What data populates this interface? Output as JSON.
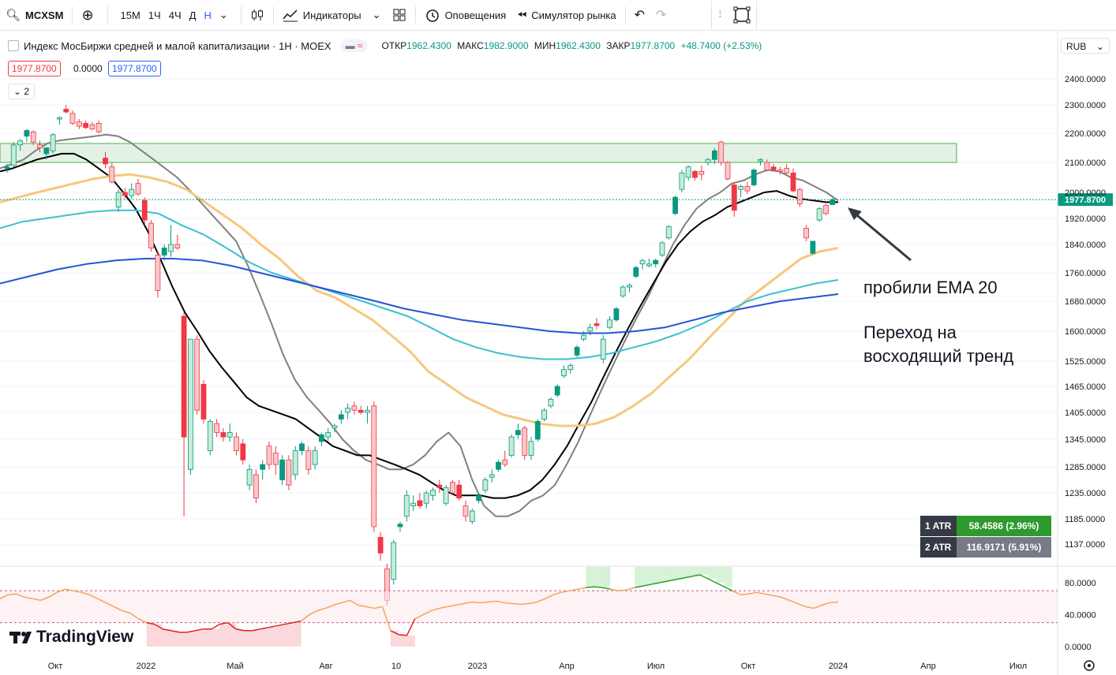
{
  "toolbar": {
    "symbol": "MCXSM",
    "timeframes": [
      "15М",
      "1Ч",
      "4Ч",
      "Д",
      "Н"
    ],
    "active_timeframe": "Н",
    "indicators_label": "Индикаторы",
    "alerts_label": "Оповещения",
    "replay_label": "Симулятор рынка"
  },
  "legend": {
    "title": "Индекс МосБиржи средней и малой капитализации · 1Н · MOEX",
    "open_label": "ОТКР",
    "open": "1962.4300",
    "high_label": "МАКС",
    "high": "1982.9000",
    "low_label": "МИН",
    "low": "1962.4300",
    "close_label": "ЗАКР",
    "close": "1977.8700",
    "change": "+48.7400 (+2.53%)",
    "sell_price": "1977.8700",
    "spread": "0.0000",
    "buy_price": "1977.8700",
    "indicator_count": "2"
  },
  "currency": "RUB",
  "atr": {
    "row1_label": "1 ATR",
    "row1_value": "58.4586 (2.96%)",
    "row2_label": "2 ATR",
    "row2_value": "116.9171 (5.91%)"
  },
  "annotations": {
    "line1": "пробили EMA 20",
    "line2": "Переход на",
    "line3": "восходящий тренд"
  },
  "brand": "TradingView",
  "colors": {
    "up": "#089981",
    "down": "#f23645",
    "ema_fast": "#808080",
    "ema20": "#000000",
    "ema_orange": "#f7c77d",
    "ema_teal": "#3bc0d0",
    "ema_blue": "#2453d8",
    "zone": "#c8e6c9",
    "rsi": "#f4a460"
  },
  "chart_data": {
    "type": "candlestick",
    "y_axis_ticks": [
      "2400.0000",
      "2300.0000",
      "2200.0000",
      "2100.0000",
      "2000.0000",
      "1920.0000",
      "1840.0000",
      "1760.0000",
      "1680.0000",
      "1600.0000",
      "1525.0000",
      "1465.0000",
      "1405.0000",
      "1345.0000",
      "1285.0000",
      "1235.0000",
      "1185.0000",
      "1137.0000"
    ],
    "x_axis_labels": [
      "Окт",
      "2022",
      "Май",
      "Авг",
      "10",
      "2023",
      "Апр",
      "Июл",
      "Окт",
      "2024",
      "Апр",
      "Июл"
    ],
    "last_price_label": "1977.8700",
    "resistance_zone": [
      2100,
      2165
    ],
    "candles": [
      {
        "o": 2080,
        "h": 2095,
        "l": 2065,
        "c": 2085
      },
      {
        "o": 2090,
        "h": 2170,
        "l": 2085,
        "c": 2160
      },
      {
        "o": 2160,
        "h": 2180,
        "l": 2140,
        "c": 2175
      },
      {
        "o": 2190,
        "h": 2215,
        "l": 2170,
        "c": 2210
      },
      {
        "o": 2205,
        "h": 2210,
        "l": 2160,
        "c": 2170
      },
      {
        "o": 2160,
        "h": 2175,
        "l": 2135,
        "c": 2150
      },
      {
        "o": 2130,
        "h": 2150,
        "l": 2110,
        "c": 2150
      },
      {
        "o": 2140,
        "h": 2200,
        "l": 2130,
        "c": 2195
      },
      {
        "o": 2250,
        "h": 2260,
        "l": 2230,
        "c": 2255
      },
      {
        "o": 2285,
        "h": 2300,
        "l": 2270,
        "c": 2275
      },
      {
        "o": 2270,
        "h": 2280,
        "l": 2230,
        "c": 2235
      },
      {
        "o": 2240,
        "h": 2250,
        "l": 2215,
        "c": 2225
      },
      {
        "o": 2235,
        "h": 2245,
        "l": 2215,
        "c": 2220
      },
      {
        "o": 2230,
        "h": 2240,
        "l": 2210,
        "c": 2215
      },
      {
        "o": 2235,
        "h": 2245,
        "l": 2200,
        "c": 2205
      },
      {
        "o": 2115,
        "h": 2135,
        "l": 2080,
        "c": 2095
      },
      {
        "o": 2085,
        "h": 2100,
        "l": 2030,
        "c": 2035
      },
      {
        "o": 1955,
        "h": 2010,
        "l": 1940,
        "c": 2000
      },
      {
        "o": 2000,
        "h": 2015,
        "l": 1980,
        "c": 1990
      },
      {
        "o": 1990,
        "h": 2030,
        "l": 1980,
        "c": 2010
      },
      {
        "o": 2030,
        "h": 2045,
        "l": 1990,
        "c": 1995
      },
      {
        "o": 1975,
        "h": 1985,
        "l": 1900,
        "c": 1915
      },
      {
        "o": 1905,
        "h": 1915,
        "l": 1820,
        "c": 1830
      },
      {
        "o": 1810,
        "h": 1820,
        "l": 1690,
        "c": 1710
      },
      {
        "o": 1810,
        "h": 1840,
        "l": 1795,
        "c": 1830
      },
      {
        "o": 1820,
        "h": 1900,
        "l": 1805,
        "c": 1840
      },
      {
        "o": 1840,
        "h": 1870,
        "l": 1825,
        "c": 1830
      },
      {
        "o": 1640,
        "h": 1650,
        "l": 1190,
        "c": 1350
      },
      {
        "o": 1280,
        "h": 1580,
        "l": 1270,
        "c": 1580
      },
      {
        "o": 1580,
        "h": 1590,
        "l": 1400,
        "c": 1410
      },
      {
        "o": 1470,
        "h": 1480,
        "l": 1380,
        "c": 1390
      },
      {
        "o": 1320,
        "h": 1390,
        "l": 1310,
        "c": 1385
      },
      {
        "o": 1380,
        "h": 1390,
        "l": 1350,
        "c": 1360
      },
      {
        "o": 1360,
        "h": 1370,
        "l": 1340,
        "c": 1350
      },
      {
        "o": 1350,
        "h": 1380,
        "l": 1340,
        "c": 1360
      },
      {
        "o": 1350,
        "h": 1360,
        "l": 1310,
        "c": 1320
      },
      {
        "o": 1335,
        "h": 1345,
        "l": 1290,
        "c": 1300
      },
      {
        "o": 1250,
        "h": 1290,
        "l": 1240,
        "c": 1280
      },
      {
        "o": 1270,
        "h": 1280,
        "l": 1215,
        "c": 1225
      },
      {
        "o": 1280,
        "h": 1300,
        "l": 1260,
        "c": 1290
      },
      {
        "o": 1330,
        "h": 1340,
        "l": 1280,
        "c": 1290
      },
      {
        "o": 1315,
        "h": 1330,
        "l": 1270,
        "c": 1290
      },
      {
        "o": 1260,
        "h": 1310,
        "l": 1250,
        "c": 1300
      },
      {
        "o": 1300,
        "h": 1310,
        "l": 1240,
        "c": 1250
      },
      {
        "o": 1270,
        "h": 1330,
        "l": 1260,
        "c": 1320
      },
      {
        "o": 1320,
        "h": 1340,
        "l": 1310,
        "c": 1335
      },
      {
        "o": 1320,
        "h": 1330,
        "l": 1270,
        "c": 1280
      },
      {
        "o": 1290,
        "h": 1330,
        "l": 1280,
        "c": 1320
      },
      {
        "o": 1340,
        "h": 1360,
        "l": 1330,
        "c": 1355
      },
      {
        "o": 1350,
        "h": 1370,
        "l": 1340,
        "c": 1360
      },
      {
        "o": 1370,
        "h": 1380,
        "l": 1360,
        "c": 1375
      },
      {
        "o": 1390,
        "h": 1410,
        "l": 1380,
        "c": 1400
      },
      {
        "o": 1405,
        "h": 1425,
        "l": 1390,
        "c": 1415
      },
      {
        "o": 1420,
        "h": 1430,
        "l": 1400,
        "c": 1410
      },
      {
        "o": 1410,
        "h": 1420,
        "l": 1400,
        "c": 1405
      },
      {
        "o": 1405,
        "h": 1420,
        "l": 1380,
        "c": 1410
      },
      {
        "o": 1420,
        "h": 1430,
        "l": 1160,
        "c": 1170
      },
      {
        "o": 1150,
        "h": 1160,
        "l": 1105,
        "c": 1120
      },
      {
        "o": 1090,
        "h": 1100,
        "l": 1020,
        "c": 1030
      },
      {
        "o": 1070,
        "h": 1145,
        "l": 1060,
        "c": 1140
      },
      {
        "o": 1170,
        "h": 1180,
        "l": 1160,
        "c": 1175
      },
      {
        "o": 1190,
        "h": 1240,
        "l": 1180,
        "c": 1230
      },
      {
        "o": 1210,
        "h": 1230,
        "l": 1200,
        "c": 1215
      },
      {
        "o": 1220,
        "h": 1235,
        "l": 1205,
        "c": 1210
      },
      {
        "o": 1215,
        "h": 1240,
        "l": 1205,
        "c": 1235
      },
      {
        "o": 1230,
        "h": 1245,
        "l": 1220,
        "c": 1240
      },
      {
        "o": 1250,
        "h": 1260,
        "l": 1235,
        "c": 1245
      },
      {
        "o": 1215,
        "h": 1250,
        "l": 1210,
        "c": 1245
      },
      {
        "o": 1255,
        "h": 1260,
        "l": 1230,
        "c": 1235
      },
      {
        "o": 1250,
        "h": 1260,
        "l": 1220,
        "c": 1225
      },
      {
        "o": 1210,
        "h": 1220,
        "l": 1180,
        "c": 1190
      },
      {
        "o": 1180,
        "h": 1205,
        "l": 1175,
        "c": 1200
      },
      {
        "o": 1220,
        "h": 1235,
        "l": 1215,
        "c": 1230
      },
      {
        "o": 1240,
        "h": 1265,
        "l": 1235,
        "c": 1260
      },
      {
        "o": 1265,
        "h": 1280,
        "l": 1255,
        "c": 1270
      },
      {
        "o": 1280,
        "h": 1300,
        "l": 1275,
        "c": 1295
      },
      {
        "o": 1300,
        "h": 1320,
        "l": 1285,
        "c": 1290
      },
      {
        "o": 1310,
        "h": 1355,
        "l": 1305,
        "c": 1350
      },
      {
        "o": 1355,
        "h": 1380,
        "l": 1345,
        "c": 1365
      },
      {
        "o": 1370,
        "h": 1375,
        "l": 1300,
        "c": 1310
      },
      {
        "o": 1310,
        "h": 1350,
        "l": 1300,
        "c": 1340
      },
      {
        "o": 1345,
        "h": 1390,
        "l": 1340,
        "c": 1385
      },
      {
        "o": 1390,
        "h": 1415,
        "l": 1385,
        "c": 1410
      },
      {
        "o": 1420,
        "h": 1440,
        "l": 1415,
        "c": 1435
      },
      {
        "o": 1445,
        "h": 1470,
        "l": 1440,
        "c": 1465
      },
      {
        "o": 1490,
        "h": 1515,
        "l": 1485,
        "c": 1505
      },
      {
        "o": 1505,
        "h": 1520,
        "l": 1495,
        "c": 1515
      },
      {
        "o": 1540,
        "h": 1565,
        "l": 1535,
        "c": 1560
      },
      {
        "o": 1580,
        "h": 1600,
        "l": 1575,
        "c": 1590
      },
      {
        "o": 1600,
        "h": 1620,
        "l": 1590,
        "c": 1610
      },
      {
        "o": 1620,
        "h": 1635,
        "l": 1605,
        "c": 1615
      },
      {
        "o": 1530,
        "h": 1590,
        "l": 1520,
        "c": 1580
      },
      {
        "o": 1610,
        "h": 1640,
        "l": 1605,
        "c": 1630
      },
      {
        "o": 1630,
        "h": 1665,
        "l": 1625,
        "c": 1660
      },
      {
        "o": 1695,
        "h": 1725,
        "l": 1690,
        "c": 1720
      },
      {
        "o": 1720,
        "h": 1730,
        "l": 1705,
        "c": 1725
      },
      {
        "o": 1750,
        "h": 1780,
        "l": 1745,
        "c": 1775
      },
      {
        "o": 1785,
        "h": 1800,
        "l": 1770,
        "c": 1795
      },
      {
        "o": 1780,
        "h": 1800,
        "l": 1775,
        "c": 1785
      },
      {
        "o": 1785,
        "h": 1800,
        "l": 1775,
        "c": 1795
      },
      {
        "o": 1810,
        "h": 1850,
        "l": 1805,
        "c": 1845
      },
      {
        "o": 1860,
        "h": 1900,
        "l": 1855,
        "c": 1895
      },
      {
        "o": 1935,
        "h": 1990,
        "l": 1930,
        "c": 1985
      },
      {
        "o": 2010,
        "h": 2075,
        "l": 2000,
        "c": 2065
      },
      {
        "o": 2050,
        "h": 2090,
        "l": 2040,
        "c": 2085
      },
      {
        "o": 2070,
        "h": 2075,
        "l": 2040,
        "c": 2050
      },
      {
        "o": 2070,
        "h": 2090,
        "l": 2040,
        "c": 2060
      },
      {
        "o": 2100,
        "h": 2115,
        "l": 2090,
        "c": 2110
      },
      {
        "o": 2110,
        "h": 2150,
        "l": 2095,
        "c": 2140
      },
      {
        "o": 2170,
        "h": 2175,
        "l": 2090,
        "c": 2100
      },
      {
        "o": 2100,
        "h": 2105,
        "l": 2040,
        "c": 2045
      },
      {
        "o": 2025,
        "h": 2035,
        "l": 1925,
        "c": 1945
      },
      {
        "o": 2010,
        "h": 2025,
        "l": 1985,
        "c": 2020
      },
      {
        "o": 2020,
        "h": 2035,
        "l": 1995,
        "c": 2005
      },
      {
        "o": 2025,
        "h": 2080,
        "l": 2020,
        "c": 2075
      },
      {
        "o": 2105,
        "h": 2115,
        "l": 2090,
        "c": 2110
      },
      {
        "o": 2100,
        "h": 2110,
        "l": 2070,
        "c": 2075
      },
      {
        "o": 2085,
        "h": 2095,
        "l": 2070,
        "c": 2075
      },
      {
        "o": 2075,
        "h": 2085,
        "l": 2060,
        "c": 2070
      },
      {
        "o": 2080,
        "h": 2095,
        "l": 2060,
        "c": 2065
      },
      {
        "o": 2065,
        "h": 2080,
        "l": 2000,
        "c": 2005
      },
      {
        "o": 2010,
        "h": 2015,
        "l": 1955,
        "c": 1965
      },
      {
        "o": 1890,
        "h": 1900,
        "l": 1850,
        "c": 1860
      },
      {
        "o": 1815,
        "h": 1850,
        "l": 1810,
        "c": 1850
      },
      {
        "o": 1915,
        "h": 1955,
        "l": 1910,
        "c": 1950
      },
      {
        "o": 1960,
        "h": 1965,
        "l": 1930,
        "c": 1935
      },
      {
        "o": 1962.43,
        "h": 1982.9,
        "l": 1962.43,
        "c": 1977.87
      }
    ],
    "series": [
      {
        "name": "EMA fast",
        "values": [
          2080,
          2095,
          2110,
          2140,
          2165,
          2175,
          2180,
          2185,
          2190,
          2195,
          2190,
          2170,
          2140,
          2110,
          2080,
          2050,
          2010,
          1970,
          1930,
          1890,
          1850,
          1780,
          1700,
          1620,
          1540,
          1480,
          1440,
          1410,
          1380,
          1345,
          1320,
          1300,
          1290,
          1280,
          1280,
          1290,
          1310,
          1340,
          1360,
          1330,
          1260,
          1210,
          1190,
          1190,
          1200,
          1220,
          1230,
          1250,
          1290,
          1340,
          1400,
          1460,
          1520,
          1580,
          1640,
          1700,
          1770,
          1840,
          1900,
          1950,
          1980,
          2000,
          2030,
          2040,
          2060,
          2075,
          2070,
          2050,
          2040,
          2020,
          2000,
          1975
        ]
      },
      {
        "name": "EMA 20",
        "values": [
          2070,
          2080,
          2095,
          2110,
          2120,
          2130,
          2130,
          2110,
          2080,
          2050,
          2000,
          1950,
          1880,
          1800,
          1720,
          1650,
          1600,
          1550,
          1510,
          1475,
          1440,
          1420,
          1410,
          1400,
          1390,
          1370,
          1350,
          1330,
          1320,
          1310,
          1310,
          1300,
          1290,
          1280,
          1270,
          1255,
          1240,
          1230,
          1230,
          1230,
          1225,
          1225,
          1230,
          1240,
          1260,
          1290,
          1330,
          1380,
          1430,
          1490,
          1550,
          1610,
          1670,
          1730,
          1790,
          1840,
          1880,
          1910,
          1930,
          1955,
          1970,
          1985,
          2000,
          2005,
          1990,
          1980,
          1975,
          1970,
          1970
        ]
      },
      {
        "name": "EMA orange",
        "values": [
          1970,
          1985,
          2000,
          2015,
          2030,
          2045,
          2055,
          2060,
          2050,
          2035,
          2010,
          1970,
          1930,
          1890,
          1840,
          1800,
          1750,
          1710,
          1690,
          1660,
          1630,
          1590,
          1550,
          1500,
          1470,
          1440,
          1420,
          1400,
          1390,
          1380,
          1375,
          1375,
          1380,
          1395,
          1420,
          1450,
          1490,
          1530,
          1580,
          1630,
          1680,
          1720,
          1760,
          1800,
          1820,
          1830
        ]
      },
      {
        "name": "EMA teal",
        "values": [
          1890,
          1910,
          1920,
          1930,
          1940,
          1945,
          1945,
          1935,
          1900,
          1870,
          1830,
          1790,
          1760,
          1740,
          1720,
          1700,
          1680,
          1660,
          1640,
          1610,
          1580,
          1560,
          1545,
          1535,
          1530,
          1530,
          1535,
          1545,
          1560,
          1575,
          1595,
          1620,
          1650,
          1680,
          1700,
          1715,
          1730,
          1740
        ]
      },
      {
        "name": "EMA blue",
        "values": [
          1730,
          1750,
          1770,
          1785,
          1795,
          1800,
          1800,
          1795,
          1780,
          1760,
          1740,
          1720,
          1700,
          1680,
          1660,
          1645,
          1630,
          1620,
          1610,
          1600,
          1595,
          1595,
          1600,
          1610,
          1630,
          1650,
          1665,
          1680,
          1690,
          1700
        ]
      }
    ],
    "rsi": {
      "ticks": [
        "80.0000",
        "40.0000",
        "0.0000"
      ],
      "band": [
        30,
        70
      ],
      "values": [
        60,
        65,
        66,
        62,
        60,
        58,
        62,
        68,
        72,
        70,
        68,
        65,
        60,
        55,
        50,
        45,
        42,
        35,
        30,
        28,
        22,
        20,
        18,
        18,
        20,
        22,
        22,
        28,
        30,
        22,
        20,
        20,
        22,
        24,
        26,
        28,
        30,
        32,
        40,
        45,
        48,
        52,
        55,
        58,
        52,
        50,
        48,
        50,
        20,
        15,
        14,
        35,
        40,
        45,
        48,
        50,
        52,
        54,
        56,
        55,
        56,
        57,
        55,
        54,
        53,
        54,
        56,
        60,
        65,
        68,
        70,
        72,
        74,
        75,
        74,
        72,
        70,
        71,
        74,
        76,
        78,
        80,
        82,
        84,
        86,
        88,
        90,
        85,
        80,
        75,
        70,
        65,
        66,
        68,
        66,
        64,
        62,
        58,
        54,
        50,
        48,
        52,
        55,
        56
      ]
    }
  }
}
